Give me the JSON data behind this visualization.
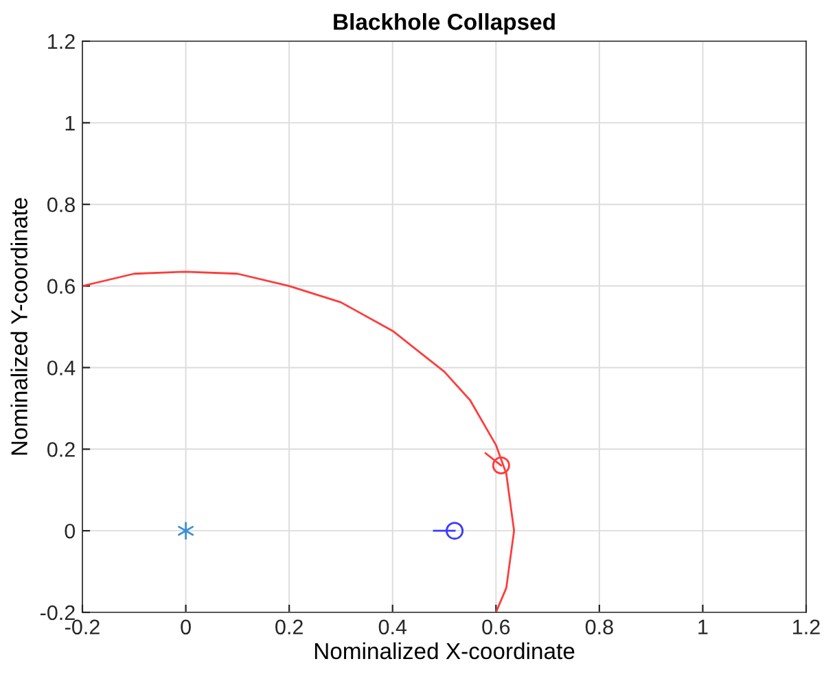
{
  "chart_data": {
    "type": "line",
    "title": "Blackhole Collapsed",
    "xlabel": "Nominalized X-coordinate",
    "ylabel": "Nominalized Y-coordinate",
    "xlim": [
      -0.2,
      1.2
    ],
    "ylim": [
      -0.2,
      1.2
    ],
    "xticks": [
      -0.2,
      0,
      0.2,
      0.4,
      0.6,
      0.8,
      1,
      1.2
    ],
    "yticks": [
      -0.2,
      0,
      0.2,
      0.4,
      0.6,
      0.8,
      1,
      1.2
    ],
    "grid": true,
    "legend": false,
    "series": [
      {
        "marker": "none",
        "color": "#ff3b3b",
        "x": [
          -0.2,
          -0.1,
          0,
          0.1,
          0.2,
          0.3,
          0.4,
          0.5,
          0.55,
          0.6,
          0.62,
          0.635,
          0.62,
          0.6
        ],
        "values": [
          0.6,
          0.63,
          0.635,
          0.63,
          0.6,
          0.56,
          0.49,
          0.39,
          0.32,
          0.21,
          0.14,
          0,
          -0.14,
          -0.2
        ]
      },
      {
        "marker": "none",
        "color": "#ff3b3b",
        "x": [
          0.58,
          0.61
        ],
        "values": [
          0.19,
          0.16
        ]
      },
      {
        "type": "scatter",
        "marker": "circle",
        "color": "#ff3b3b",
        "x": [
          0.61
        ],
        "values": [
          0.16
        ]
      },
      {
        "marker": "none",
        "color": "#3b3bff",
        "x": [
          0.48,
          0.52
        ],
        "values": [
          0,
          0
        ]
      },
      {
        "type": "scatter",
        "marker": "circle",
        "color": "#3b3bff",
        "x": [
          0.52
        ],
        "values": [
          0
        ]
      },
      {
        "type": "scatter",
        "marker": "cross",
        "color": "#3a8fd6",
        "x": [
          0
        ],
        "values": [
          0
        ]
      }
    ]
  }
}
